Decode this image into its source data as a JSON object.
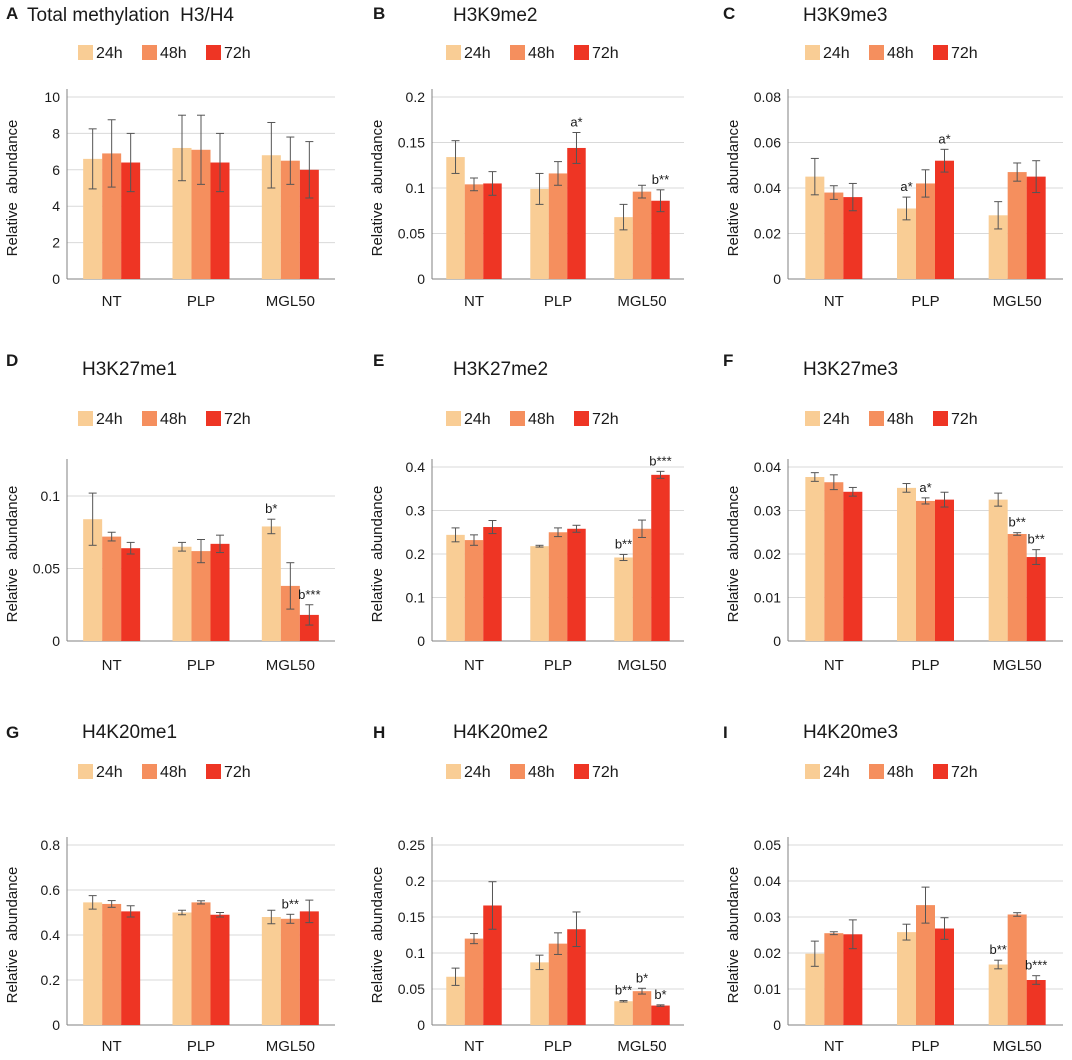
{
  "figure": {
    "background": "#ffffff",
    "gridline_color": "#d9d9d9",
    "axis_color": "#808080",
    "errorbar_color": "#555555"
  },
  "colors": {
    "24h": "#f9cd95",
    "48h": "#f58f5e",
    "72h": "#ee3524"
  },
  "chart_data": [
    {
      "panel": "A",
      "type": "bar",
      "title": "Total methylation  H3/H4",
      "ylabel": "Relative  abundance",
      "ylim": [
        0,
        10
      ],
      "yticks": [
        0,
        2,
        4,
        6,
        8,
        10
      ],
      "ytick_labels": [
        "0",
        "2",
        "4",
        "6",
        "8",
        "10"
      ],
      "categories": [
        "NT",
        "PLP",
        "MGL50"
      ],
      "grid": true,
      "legend": "top",
      "series": [
        {
          "name": "24h",
          "values": [
            6.6,
            7.2,
            6.8
          ],
          "errors": [
            1.65,
            1.8,
            1.8
          ],
          "annotations": [
            "",
            "",
            ""
          ]
        },
        {
          "name": "48h",
          "values": [
            6.9,
            7.1,
            6.5
          ],
          "errors": [
            1.85,
            1.9,
            1.3
          ],
          "annotations": [
            "",
            "",
            ""
          ]
        },
        {
          "name": "72h",
          "values": [
            6.4,
            6.4,
            6.0
          ],
          "errors": [
            1.6,
            1.6,
            1.55
          ],
          "annotations": [
            "",
            "",
            ""
          ]
        }
      ]
    },
    {
      "panel": "B",
      "type": "bar",
      "title": "H3K9me2",
      "ylabel": "Relative  abundance",
      "ylim": [
        0,
        0.2
      ],
      "yticks": [
        0,
        0.05,
        0.1,
        0.15,
        0.2
      ],
      "ytick_labels": [
        "0",
        "0.05",
        "0.1",
        "0.15",
        "0.2"
      ],
      "categories": [
        "NT",
        "PLP",
        "MGL50"
      ],
      "grid": true,
      "legend": "top",
      "series": [
        {
          "name": "24h",
          "values": [
            0.134,
            0.099,
            0.068
          ],
          "errors": [
            0.018,
            0.017,
            0.014
          ],
          "annotations": [
            "",
            "",
            ""
          ]
        },
        {
          "name": "48h",
          "values": [
            0.104,
            0.116,
            0.096
          ],
          "errors": [
            0.007,
            0.013,
            0.007
          ],
          "annotations": [
            "",
            "",
            ""
          ]
        },
        {
          "name": "72h",
          "values": [
            0.105,
            0.144,
            0.086
          ],
          "errors": [
            0.013,
            0.017,
            0.012
          ],
          "annotations": [
            "",
            "a*",
            "b**"
          ]
        }
      ]
    },
    {
      "panel": "C",
      "type": "bar",
      "title": "H3K9me3",
      "ylabel": "Relative  abundance",
      "ylim": [
        0,
        0.08
      ],
      "yticks": [
        0,
        0.02,
        0.04,
        0.06,
        0.08
      ],
      "ytick_labels": [
        "0",
        "0.02",
        "0.04",
        "0.06",
        "0.08"
      ],
      "categories": [
        "NT",
        "PLP",
        "MGL50"
      ],
      "grid": true,
      "legend": "top",
      "series": [
        {
          "name": "24h",
          "values": [
            0.045,
            0.031,
            0.028
          ],
          "errors": [
            0.008,
            0.005,
            0.006
          ],
          "annotations": [
            "",
            "a*",
            ""
          ]
        },
        {
          "name": "48h",
          "values": [
            0.038,
            0.042,
            0.047
          ],
          "errors": [
            0.003,
            0.006,
            0.004
          ],
          "annotations": [
            "",
            "",
            ""
          ]
        },
        {
          "name": "72h",
          "values": [
            0.036,
            0.052,
            0.045
          ],
          "errors": [
            0.006,
            0.005,
            0.007
          ],
          "annotations": [
            "",
            "a*",
            ""
          ]
        }
      ]
    },
    {
      "panel": "D",
      "type": "bar",
      "title": "H3K27me1",
      "ylabel": "Relative  abundance",
      "ylim": [
        0,
        0.12
      ],
      "yticks": [
        0,
        0.05,
        0.1
      ],
      "ytick_labels": [
        "0",
        "0.05",
        "0.1"
      ],
      "categories": [
        "NT",
        "PLP",
        "MGL50"
      ],
      "grid": true,
      "legend": "top",
      "series": [
        {
          "name": "24h",
          "values": [
            0.084,
            0.065,
            0.079
          ],
          "errors": [
            0.018,
            0.003,
            0.005
          ],
          "annotations": [
            "",
            "",
            "b*"
          ]
        },
        {
          "name": "48h",
          "values": [
            0.072,
            0.062,
            0.038
          ],
          "errors": [
            0.003,
            0.008,
            0.016
          ],
          "annotations": [
            "",
            "",
            ""
          ]
        },
        {
          "name": "72h",
          "values": [
            0.064,
            0.067,
            0.018
          ],
          "errors": [
            0.004,
            0.006,
            0.007
          ],
          "annotations": [
            "",
            "",
            "b***"
          ]
        }
      ]
    },
    {
      "panel": "E",
      "type": "bar",
      "title": "H3K27me2",
      "ylabel": "Relative  abundance",
      "ylim": [
        0,
        0.4
      ],
      "yticks": [
        0,
        0.1,
        0.2,
        0.3,
        0.4
      ],
      "ytick_labels": [
        "0",
        "0.1",
        "0.2",
        "0.3",
        "0.4"
      ],
      "categories": [
        "NT",
        "PLP",
        "MGL50"
      ],
      "grid": true,
      "legend": "top",
      "series": [
        {
          "name": "24h",
          "values": [
            0.244,
            0.218,
            0.192
          ],
          "errors": [
            0.016,
            0.002,
            0.007
          ],
          "annotations": [
            "",
            "",
            "b**"
          ]
        },
        {
          "name": "48h",
          "values": [
            0.232,
            0.25,
            0.258
          ],
          "errors": [
            0.012,
            0.01,
            0.02
          ],
          "annotations": [
            "",
            "",
            ""
          ]
        },
        {
          "name": "72h",
          "values": [
            0.262,
            0.258,
            0.382
          ],
          "errors": [
            0.015,
            0.008,
            0.008
          ],
          "annotations": [
            "",
            "",
            "b***"
          ]
        }
      ]
    },
    {
      "panel": "F",
      "type": "bar",
      "title": "H3K27me3",
      "ylabel": "Relative  abundance",
      "ylim": [
        0,
        0.04
      ],
      "yticks": [
        0,
        0.01,
        0.02,
        0.03,
        0.04
      ],
      "ytick_labels": [
        "0",
        "0.01",
        "0.02",
        "0.03",
        "0.04"
      ],
      "categories": [
        "NT",
        "PLP",
        "MGL50"
      ],
      "grid": true,
      "legend": "top",
      "series": [
        {
          "name": "24h",
          "values": [
            0.0377,
            0.0352,
            0.0325
          ],
          "errors": [
            0.001,
            0.001,
            0.0015
          ],
          "annotations": [
            "",
            "",
            ""
          ]
        },
        {
          "name": "48h",
          "values": [
            0.0365,
            0.0322,
            0.0246
          ],
          "errors": [
            0.0017,
            0.0007,
            0.0003
          ],
          "annotations": [
            "",
            "a*",
            "b**"
          ]
        },
        {
          "name": "72h",
          "values": [
            0.0343,
            0.0325,
            0.0193
          ],
          "errors": [
            0.001,
            0.0017,
            0.0017
          ],
          "annotations": [
            "",
            "",
            "b**"
          ]
        }
      ]
    },
    {
      "panel": "G",
      "type": "bar",
      "title": "H4K20me1",
      "ylabel": "Relative  abundance",
      "ylim": [
        0,
        0.8
      ],
      "yticks": [
        0,
        0.2,
        0.4,
        0.6,
        0.8
      ],
      "ytick_labels": [
        "0",
        "0.2",
        "0.4",
        "0.6",
        "0.8"
      ],
      "categories": [
        "NT",
        "PLP",
        "MGL50"
      ],
      "grid": true,
      "legend": "top",
      "series": [
        {
          "name": "24h",
          "values": [
            0.545,
            0.5,
            0.48
          ],
          "errors": [
            0.03,
            0.01,
            0.03
          ],
          "annotations": [
            "",
            "",
            ""
          ]
        },
        {
          "name": "48h",
          "values": [
            0.538,
            0.545,
            0.472
          ],
          "errors": [
            0.015,
            0.007,
            0.02
          ],
          "annotations": [
            "",
            "",
            "b**"
          ]
        },
        {
          "name": "72h",
          "values": [
            0.505,
            0.49,
            0.505
          ],
          "errors": [
            0.025,
            0.01,
            0.05
          ],
          "annotations": [
            "",
            "",
            ""
          ]
        }
      ]
    },
    {
      "panel": "H",
      "type": "bar",
      "title": "H4K20me2",
      "ylabel": "Relative  abundance",
      "ylim": [
        0,
        0.25
      ],
      "yticks": [
        0,
        0.05,
        0.1,
        0.15,
        0.2,
        0.25
      ],
      "ytick_labels": [
        "0",
        "0.05",
        "0.1",
        "0.15",
        "0.2",
        "0.25"
      ],
      "categories": [
        "NT",
        "PLP",
        "MGL50"
      ],
      "grid": true,
      "legend": "top",
      "series": [
        {
          "name": "24h",
          "values": [
            0.067,
            0.087,
            0.033
          ],
          "errors": [
            0.012,
            0.01,
            0.001
          ],
          "annotations": [
            "",
            "",
            "b**"
          ]
        },
        {
          "name": "48h",
          "values": [
            0.12,
            0.113,
            0.047
          ],
          "errors": [
            0.007,
            0.015,
            0.004
          ],
          "annotations": [
            "",
            "",
            "b*"
          ]
        },
        {
          "name": "72h",
          "values": [
            0.166,
            0.133,
            0.027
          ],
          "errors": [
            0.033,
            0.024,
            0.001
          ],
          "annotations": [
            "",
            "",
            "b*"
          ]
        }
      ]
    },
    {
      "panel": "I",
      "type": "bar",
      "title": "H4K20me3",
      "ylabel": "Relative  abundance",
      "ylim": [
        0,
        0.05
      ],
      "yticks": [
        0,
        0.01,
        0.02,
        0.03,
        0.04,
        0.05
      ],
      "ytick_labels": [
        "0",
        "0.01",
        "0.02",
        "0.03",
        "0.04",
        "0.05"
      ],
      "categories": [
        "NT",
        "PLP",
        "MGL50"
      ],
      "grid": true,
      "legend": "top",
      "series": [
        {
          "name": "24h",
          "values": [
            0.0198,
            0.0258,
            0.0168
          ],
          "errors": [
            0.0035,
            0.0022,
            0.0012
          ],
          "annotations": [
            "",
            "",
            "b**"
          ]
        },
        {
          "name": "48h",
          "values": [
            0.0255,
            0.0333,
            0.0307
          ],
          "errors": [
            0.0004,
            0.005,
            0.0005
          ],
          "annotations": [
            "",
            "",
            ""
          ]
        },
        {
          "name": "72h",
          "values": [
            0.0252,
            0.0268,
            0.0125
          ],
          "errors": [
            0.004,
            0.003,
            0.0012
          ],
          "annotations": [
            "",
            "",
            "b***"
          ]
        }
      ]
    }
  ]
}
